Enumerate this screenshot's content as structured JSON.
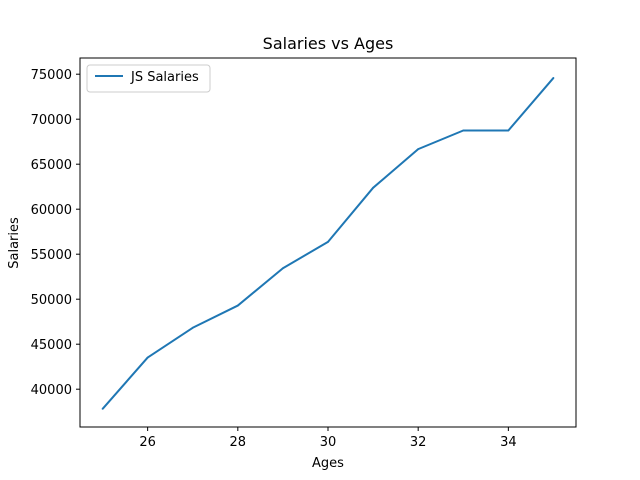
{
  "chart_data": {
    "type": "line",
    "title": "Salaries vs Ages",
    "xlabel": "Ages",
    "ylabel": "Salaries",
    "xlim": [
      24.5,
      35.5
    ],
    "ylim": [
      35800,
      76800
    ],
    "xticks": [
      26,
      28,
      30,
      32,
      34
    ],
    "yticks": [
      40000,
      45000,
      50000,
      55000,
      60000,
      65000,
      70000,
      75000
    ],
    "grid": false,
    "legend_position": "top-left",
    "series": [
      {
        "name": "JS Salaries",
        "color": "#1f77b4",
        "x": [
          25,
          26,
          27,
          28,
          29,
          30,
          31,
          32,
          33,
          34,
          35
        ],
        "y": [
          37810,
          43515,
          46823,
          49293,
          53437,
          56373,
          62375,
          66674,
          68745,
          68746,
          74583
        ]
      }
    ]
  }
}
